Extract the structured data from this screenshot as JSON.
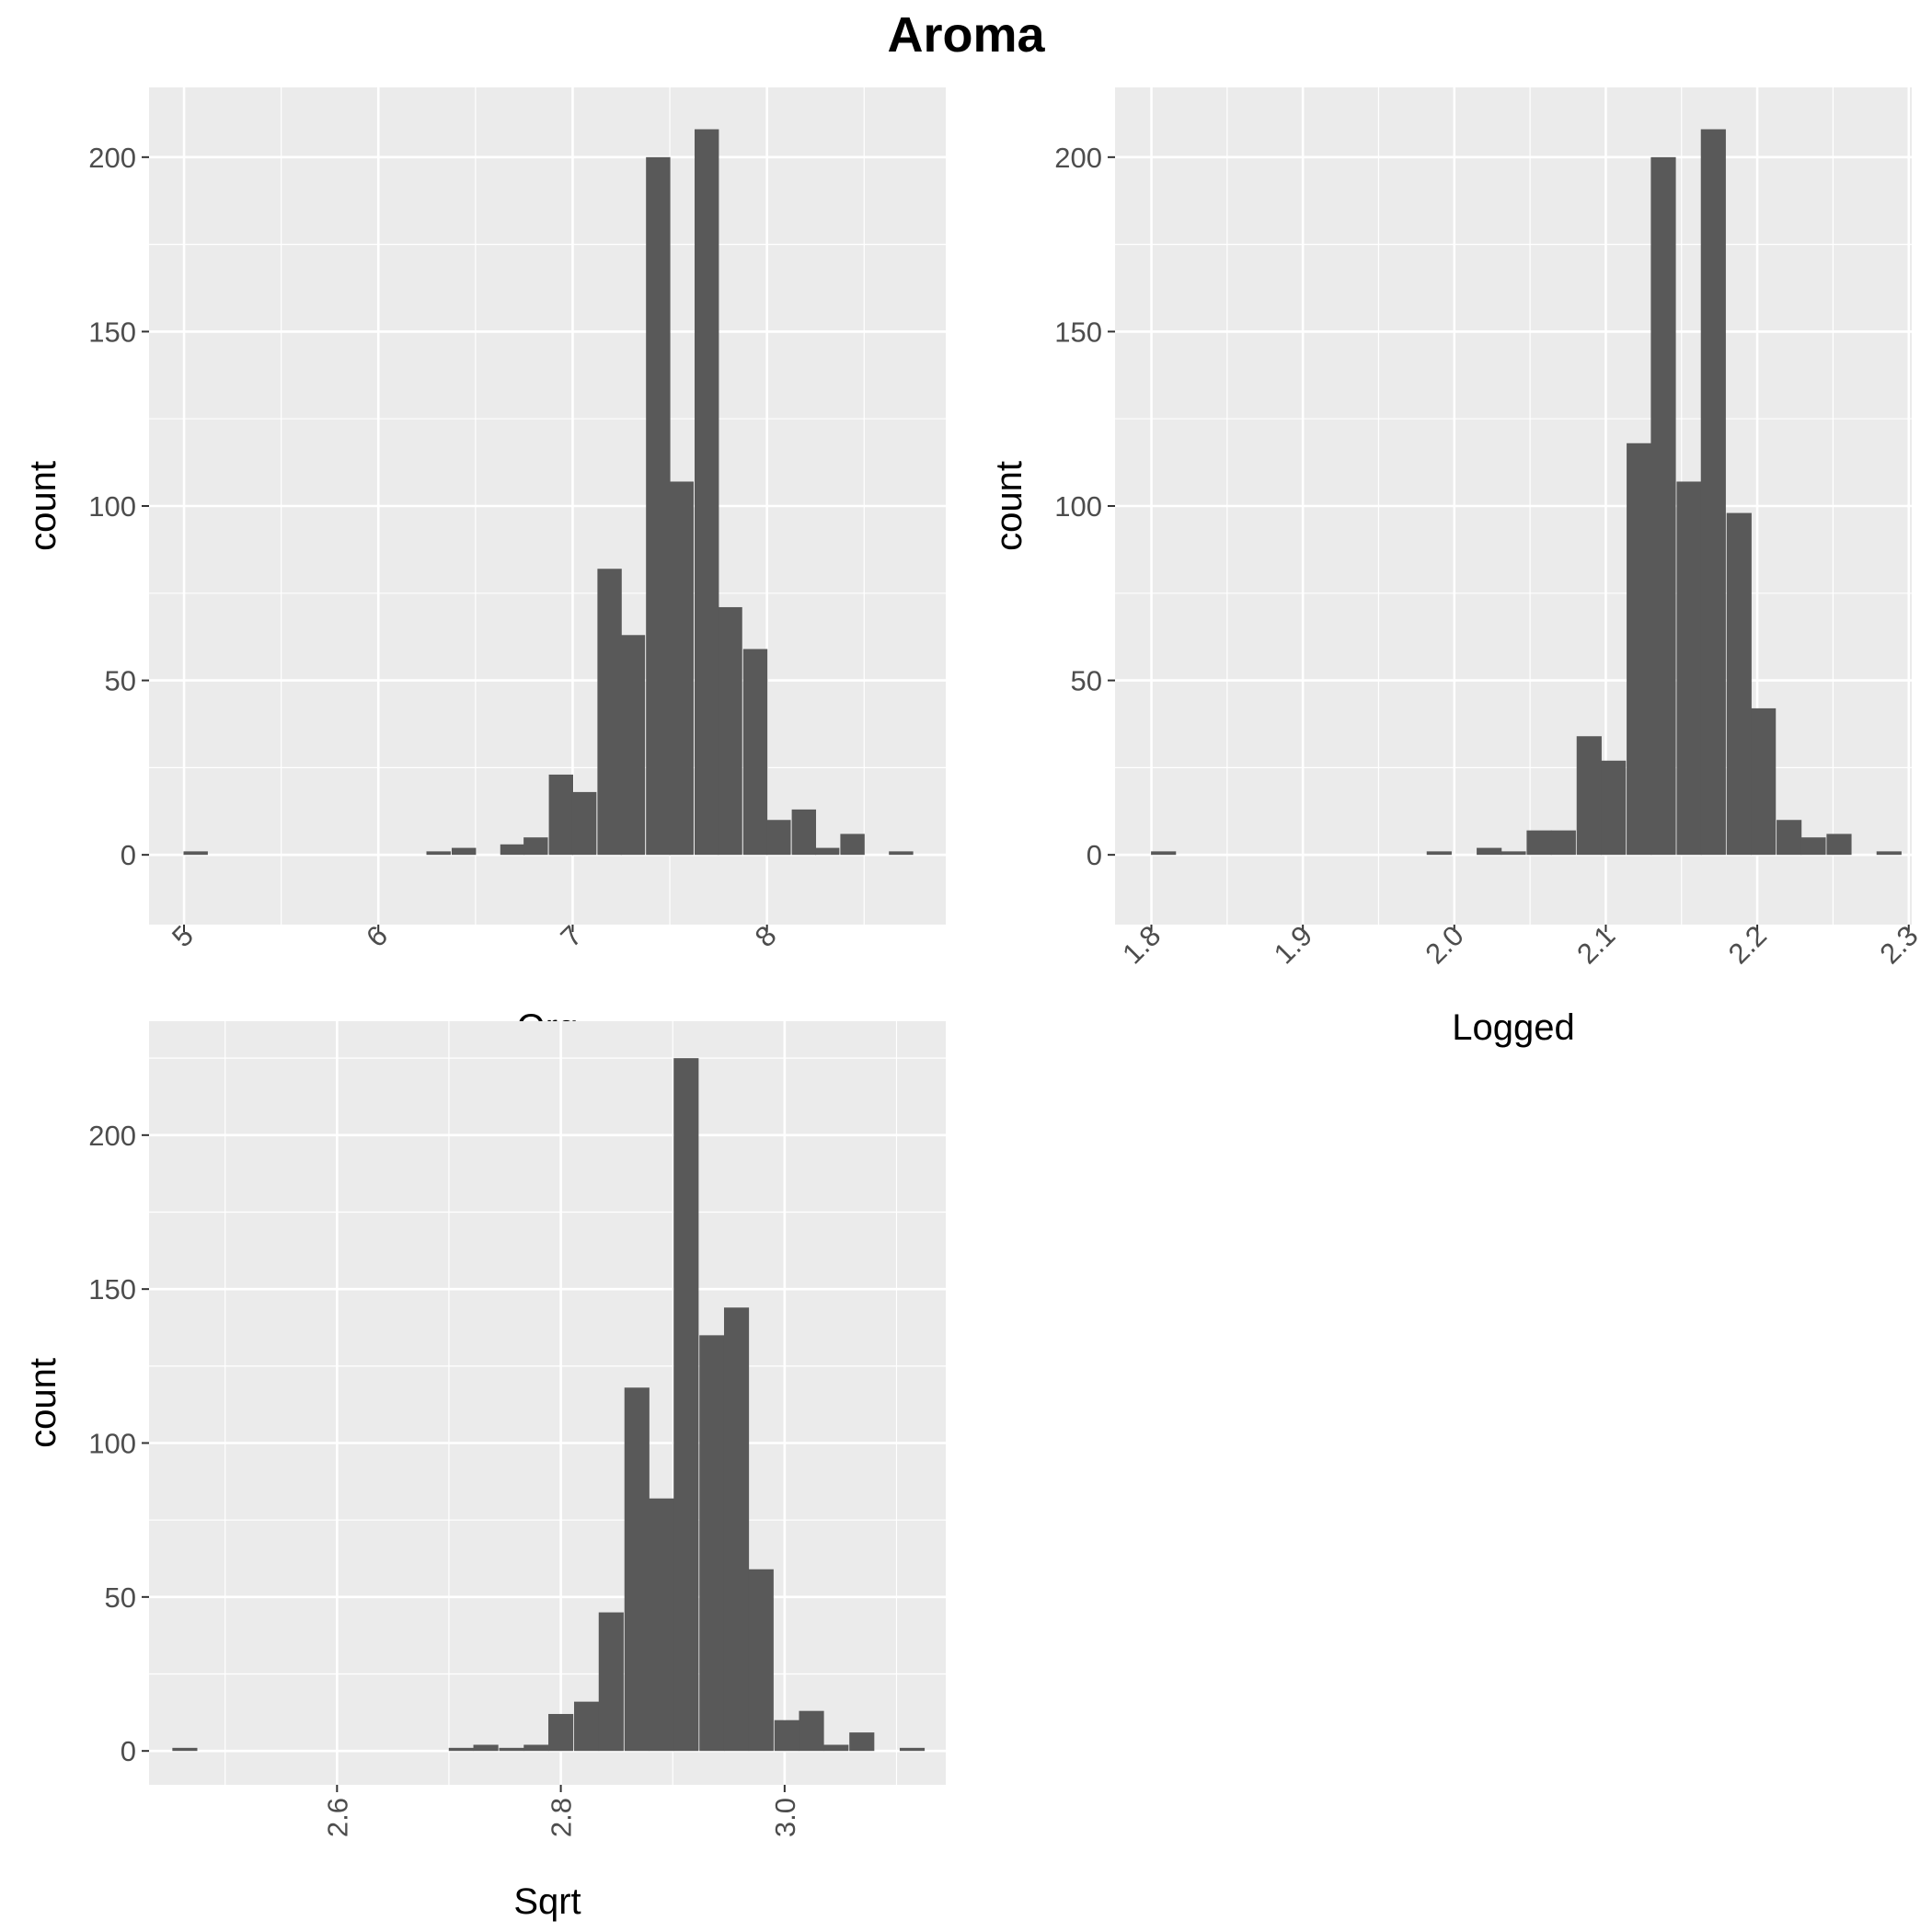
{
  "title": "Aroma",
  "chart_data": [
    {
      "type": "bar",
      "subtype": "histogram",
      "xlabel": "Org",
      "ylabel": "count",
      "xlim": [
        4.82,
        8.92
      ],
      "ylim": [
        -20,
        220
      ],
      "x_ticks": [
        "5",
        "6",
        "7",
        "8"
      ],
      "x_tick_values": [
        5,
        6,
        7,
        8
      ],
      "x_minor_ticks": [
        5.5,
        6.5,
        7.5,
        8.5
      ],
      "x_tick_rotation": -45,
      "y_ticks": [
        0,
        50,
        100,
        150,
        200
      ],
      "y_minor_ticks": [
        25,
        75,
        125,
        175
      ],
      "grid": true,
      "bin_width": 0.125,
      "bins": [
        {
          "x": 5.06,
          "count": 1
        },
        {
          "x": 6.31,
          "count": 1
        },
        {
          "x": 6.44,
          "count": 2
        },
        {
          "x": 6.69,
          "count": 3
        },
        {
          "x": 6.81,
          "count": 5
        },
        {
          "x": 6.94,
          "count": 23
        },
        {
          "x": 7.06,
          "count": 18
        },
        {
          "x": 7.19,
          "count": 82
        },
        {
          "x": 7.31,
          "count": 63
        },
        {
          "x": 7.44,
          "count": 200
        },
        {
          "x": 7.56,
          "count": 107
        },
        {
          "x": 7.69,
          "count": 208
        },
        {
          "x": 7.81,
          "count": 71
        },
        {
          "x": 7.94,
          "count": 59
        },
        {
          "x": 8.06,
          "count": 10
        },
        {
          "x": 8.19,
          "count": 13
        },
        {
          "x": 8.31,
          "count": 2
        },
        {
          "x": 8.44,
          "count": 6
        },
        {
          "x": 8.69,
          "count": 1
        }
      ]
    },
    {
      "type": "bar",
      "subtype": "histogram",
      "xlabel": "Logged",
      "ylabel": "count",
      "xlim": [
        1.776,
        2.302
      ],
      "ylim": [
        -20,
        220
      ],
      "x_ticks": [
        "1.8",
        "1.9",
        "2.0",
        "2.1",
        "2.2",
        "2.3"
      ],
      "x_tick_values": [
        1.8,
        1.9,
        2.0,
        2.1,
        2.2,
        2.3
      ],
      "x_minor_ticks": [
        1.85,
        1.95,
        2.05,
        2.15,
        2.25
      ],
      "x_tick_rotation": -45,
      "y_ticks": [
        0,
        50,
        100,
        150,
        200
      ],
      "y_minor_ticks": [
        25,
        75,
        125,
        175
      ],
      "grid": true,
      "bin_width": 0.0165,
      "bins": [
        {
          "x": 1.808,
          "count": 1
        },
        {
          "x": 1.99,
          "count": 1
        },
        {
          "x": 2.023,
          "count": 2
        },
        {
          "x": 2.039,
          "count": 1
        },
        {
          "x": 2.056,
          "count": 7
        },
        {
          "x": 2.072,
          "count": 7
        },
        {
          "x": 2.089,
          "count": 34
        },
        {
          "x": 2.105,
          "count": 27
        },
        {
          "x": 2.122,
          "count": 118
        },
        {
          "x": 2.138,
          "count": 200
        },
        {
          "x": 2.155,
          "count": 107
        },
        {
          "x": 2.171,
          "count": 208
        },
        {
          "x": 2.188,
          "count": 98
        },
        {
          "x": 2.204,
          "count": 42
        },
        {
          "x": 2.221,
          "count": 10
        },
        {
          "x": 2.237,
          "count": 5
        },
        {
          "x": 2.254,
          "count": 6
        },
        {
          "x": 2.287,
          "count": 1
        }
      ]
    },
    {
      "type": "bar",
      "subtype": "histogram",
      "xlabel": "Sqrt",
      "ylabel": "count",
      "xlim": [
        2.432,
        3.144
      ],
      "ylim": [
        -11,
        237
      ],
      "x_ticks": [
        "2.6",
        "2.8",
        "3.0"
      ],
      "x_tick_values": [
        2.6,
        2.8,
        3.0
      ],
      "x_minor_ticks": [
        2.5,
        2.7,
        2.9,
        3.1
      ],
      "x_tick_rotation": -90,
      "y_ticks": [
        0,
        50,
        100,
        150,
        200
      ],
      "y_minor_ticks": [
        25,
        75,
        125,
        175,
        225
      ],
      "grid": true,
      "bin_width": 0.0223,
      "bins": [
        {
          "x": 2.464,
          "count": 1
        },
        {
          "x": 2.711,
          "count": 1
        },
        {
          "x": 2.733,
          "count": 2
        },
        {
          "x": 2.756,
          "count": 1
        },
        {
          "x": 2.778,
          "count": 2
        },
        {
          "x": 2.8,
          "count": 12
        },
        {
          "x": 2.823,
          "count": 16
        },
        {
          "x": 2.845,
          "count": 45
        },
        {
          "x": 2.868,
          "count": 118
        },
        {
          "x": 2.89,
          "count": 82
        },
        {
          "x": 2.912,
          "count": 225
        },
        {
          "x": 2.935,
          "count": 135
        },
        {
          "x": 2.957,
          "count": 144
        },
        {
          "x": 2.979,
          "count": 59
        },
        {
          "x": 3.002,
          "count": 10
        },
        {
          "x": 3.024,
          "count": 13
        },
        {
          "x": 3.046,
          "count": 2
        },
        {
          "x": 3.069,
          "count": 6
        },
        {
          "x": 3.114,
          "count": 1
        }
      ]
    }
  ]
}
